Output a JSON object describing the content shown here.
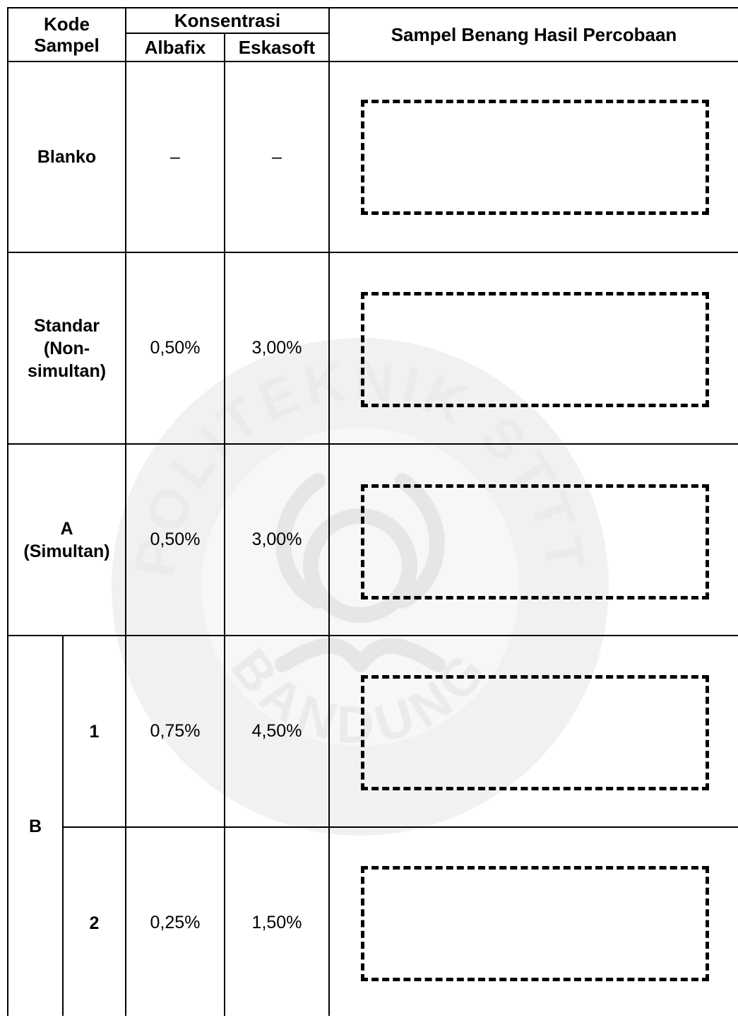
{
  "header": {
    "kode_sampel": "Kode\nSampel",
    "konsentrasi": "Konsentrasi",
    "albafix": "Albafix",
    "eskasoft": "Eskasoft",
    "sampel_benang": "Sampel Benang Hasil Percobaan"
  },
  "rows": [
    {
      "kode": "Blanko",
      "albafix": "–",
      "eskasoft": "–"
    },
    {
      "kode": "Standar\n(Non-\nsimultan)",
      "albafix": "0,50%",
      "eskasoft": "3,00%"
    },
    {
      "kode": "A\n(Simultan)",
      "albafix": "0,50%",
      "eskasoft": "3,00%"
    },
    {
      "group": "B",
      "sub": "1",
      "albafix": "0,75%",
      "eskasoft": "4,50%"
    },
    {
      "sub": "2",
      "albafix": "0,25%",
      "eskasoft": "1,50%"
    }
  ],
  "watermark": {
    "top_text": "POLITEKNIK STTT",
    "bottom_text": "BANDUNG"
  }
}
